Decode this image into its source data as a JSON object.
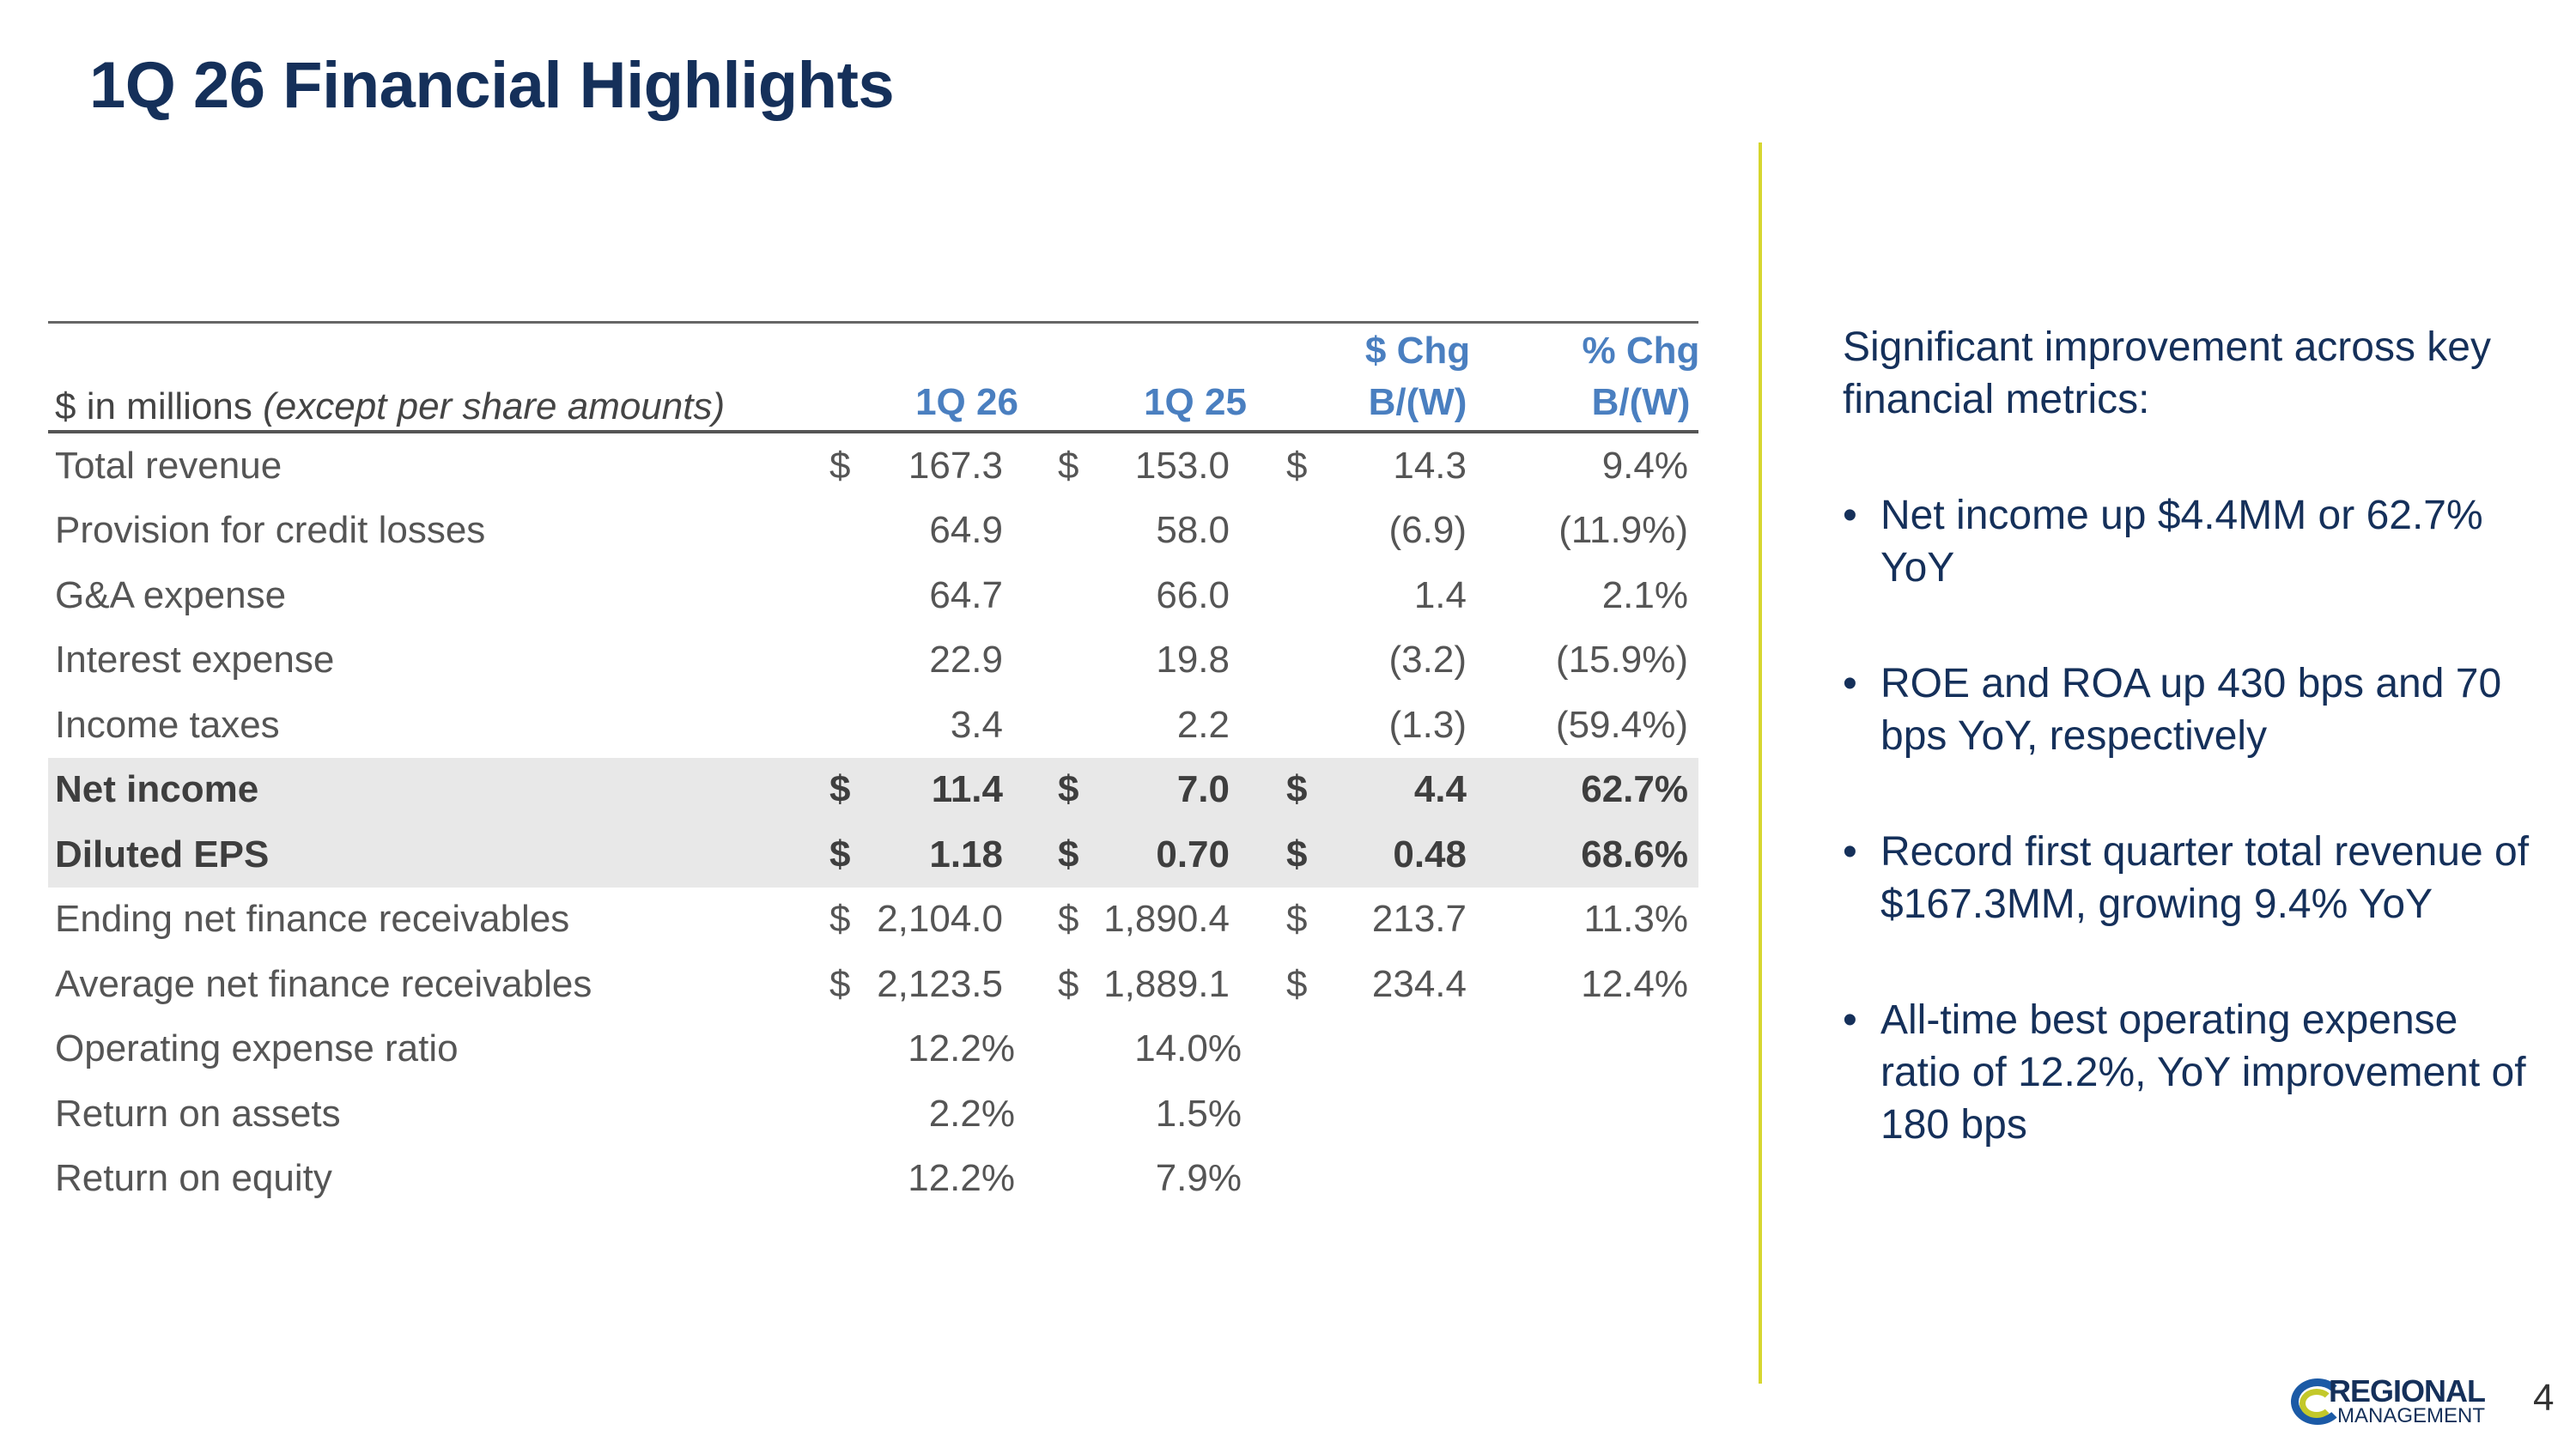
{
  "title": "1Q 26 Financial Highlights",
  "table": {
    "header": {
      "label": "$ in millions",
      "label_italic": "(except per share amounts)",
      "col1": "1Q 26",
      "col2": "1Q 25",
      "col3_line1": "$ Chg",
      "col3_line2": "B/(W)",
      "col4_line1": "% Chg",
      "col4_line2": "B/(W)"
    },
    "rows": [
      {
        "label": "Total revenue",
        "c1s": "$",
        "c1": "167.3",
        "c2s": "$",
        "c2": "153.0",
        "c3s": "$",
        "c3": "14.3",
        "c4": "9.4%"
      },
      {
        "label": "Provision for credit losses",
        "c1": "64.9",
        "c2": "58.0",
        "c3": "(6.9)",
        "c4": "(11.9%)"
      },
      {
        "label": "G&A expense",
        "c1": "64.7",
        "c2": "66.0",
        "c3": "1.4",
        "c4": "2.1%"
      },
      {
        "label": "Interest expense",
        "c1": "22.9",
        "c2": "19.8",
        "c3": "(3.2)",
        "c4": "(15.9%)"
      },
      {
        "label": "Income taxes",
        "c1": "3.4",
        "c2": "2.2",
        "c3": "(1.3)",
        "c4": "(59.4%)"
      },
      {
        "label": "Net income",
        "c1s": "$",
        "c1": "11.4",
        "c2s": "$",
        "c2": "7.0",
        "c3s": "$",
        "c3": "4.4",
        "c4": "62.7%"
      },
      {
        "label": "Diluted EPS",
        "c1s": "$",
        "c1": "1.18",
        "c2s": "$",
        "c2": "0.70",
        "c3s": "$",
        "c3": "0.48",
        "c4": "68.6%"
      },
      {
        "label": "Ending net finance receivables",
        "c1s": "$",
        "c1": "2,104.0",
        "c2s": "$",
        "c2": "1,890.4",
        "c3s": "$",
        "c3": "213.7",
        "c4": "11.3%"
      },
      {
        "label": "Average net finance receivables",
        "c1s": "$",
        "c1": "2,123.5",
        "c2s": "$",
        "c2": "1,889.1",
        "c3s": "$",
        "c3": "234.4",
        "c4": "12.4%"
      },
      {
        "label": "Operating expense ratio",
        "p1": "12.2%",
        "p2": "14.0%"
      },
      {
        "label": "Return on assets",
        "p1": "2.2%",
        "p2": "1.5%"
      },
      {
        "label": "Return on equity",
        "p1": "12.2%",
        "p2": "7.9%"
      }
    ]
  },
  "panel": {
    "intro": "Significant improvement across key financial metrics:",
    "bullet_char": "•",
    "bullets": [
      "Net income up $4.4MM or 62.7% YoY",
      "ROE and ROA up 430 bps and 70 bps YoY, respectively",
      "Record first quarter total revenue of $167.3MM, growing 9.4% YoY",
      "All-time best operating expense ratio of 12.2%, YoY improvement of 180 bps"
    ]
  },
  "logo": {
    "line1": "REGIONAL",
    "line2": "MANAGEMENT"
  },
  "page_number": "4",
  "colors": {
    "navy": "#15305a",
    "header_blue": "#4a7fc0",
    "accent_yellow": "#d6d62e",
    "row_shade": "#e8e8e8"
  }
}
